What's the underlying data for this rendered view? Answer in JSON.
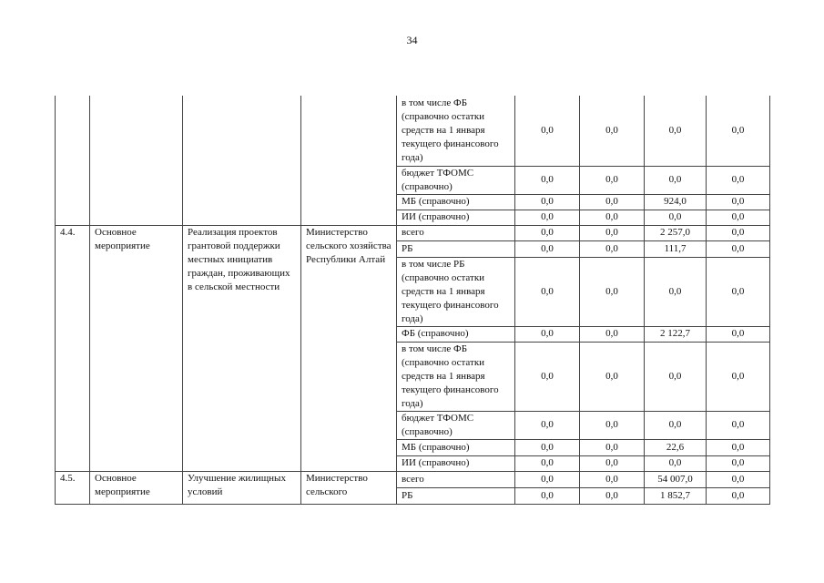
{
  "page_number": "34",
  "groups": [
    {
      "num": "",
      "type": "",
      "name": "",
      "executor": "",
      "rows": [
        {
          "source": "в том числе ФБ (справочно остатки средств на 1 января текущего финансового года)",
          "values": [
            "0,0",
            "0,0",
            "0,0",
            "0,0"
          ]
        },
        {
          "source": "бюджет ТФОМС (справочно)",
          "values": [
            "0,0",
            "0,0",
            "0,0",
            "0,0"
          ]
        },
        {
          "source": "МБ (справочно)",
          "values": [
            "0,0",
            "0,0",
            "924,0",
            "0,0"
          ]
        },
        {
          "source": "ИИ (справочно)",
          "values": [
            "0,0",
            "0,0",
            "0,0",
            "0,0"
          ]
        }
      ]
    },
    {
      "num": "4.4.",
      "type": "Основное мероприятие",
      "name": "Реализация проектов грантовой поддержки местных инициатив граждан, проживающих в сельской местности",
      "executor": "Министерство сельского хозяйства Республики Алтай",
      "rows": [
        {
          "source": "всего",
          "values": [
            "0,0",
            "0,0",
            "2 257,0",
            "0,0"
          ]
        },
        {
          "source": "РБ",
          "values": [
            "0,0",
            "0,0",
            "111,7",
            "0,0"
          ]
        },
        {
          "source": "в том числе РБ (справочно остатки средств на 1 января текущего финансового года)",
          "values": [
            "0,0",
            "0,0",
            "0,0",
            "0,0"
          ]
        },
        {
          "source": "ФБ (справочно)",
          "values": [
            "0,0",
            "0,0",
            "2 122,7",
            "0,0"
          ]
        },
        {
          "source": "в том числе ФБ (справочно остатки средств на 1 января текущего финансового года)",
          "values": [
            "0,0",
            "0,0",
            "0,0",
            "0,0"
          ]
        },
        {
          "source": "бюджет ТФОМС (справочно)",
          "values": [
            "0,0",
            "0,0",
            "0,0",
            "0,0"
          ]
        },
        {
          "source": "МБ (справочно)",
          "values": [
            "0,0",
            "0,0",
            "22,6",
            "0,0"
          ]
        },
        {
          "source": "ИИ (справочно)",
          "values": [
            "0,0",
            "0,0",
            "0,0",
            "0,0"
          ]
        }
      ]
    },
    {
      "num": "4.5.",
      "type": "Основное мероприятие",
      "name": "Улучшение жилищных условий",
      "executor": "Министерство сельского",
      "rows": [
        {
          "source": "всего",
          "values": [
            "0,0",
            "0,0",
            "54 007,0",
            "0,0"
          ]
        },
        {
          "source": "РБ",
          "values": [
            "0,0",
            "0,0",
            "1 852,7",
            "0,0"
          ]
        }
      ]
    }
  ]
}
